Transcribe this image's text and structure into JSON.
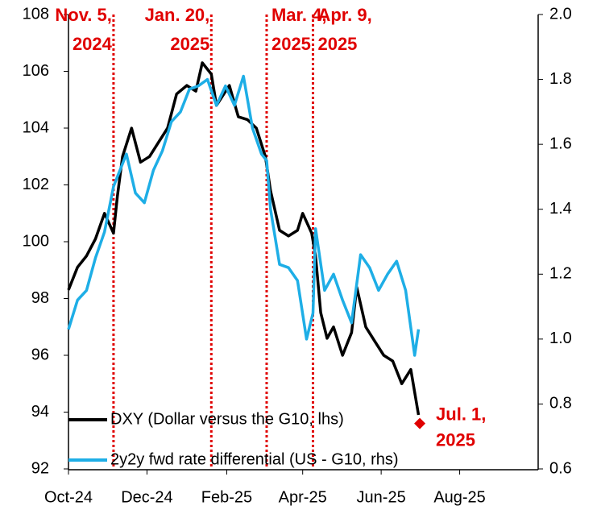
{
  "chart_data": {
    "type": "line",
    "xlim": [
      "2024-10-01",
      "2025-10-01"
    ],
    "xticks": [
      {
        "value": "2024-10-01",
        "label": "Oct-24"
      },
      {
        "value": "2024-12-01",
        "label": "Dec-24"
      },
      {
        "value": "2025-02-01",
        "label": "Feb-25"
      },
      {
        "value": "2025-04-01",
        "label": "Apr-25"
      },
      {
        "value": "2025-06-01",
        "label": "Jun-25"
      },
      {
        "value": "2025-08-01",
        "label": "Aug-25"
      }
    ],
    "ylim": [
      92,
      108
    ],
    "yticks": [
      92,
      94,
      96,
      98,
      100,
      102,
      104,
      106,
      108
    ],
    "y2lim": [
      0.6,
      2.0
    ],
    "y2ticks": [
      {
        "value": 0.6,
        "label": "0.6"
      },
      {
        "value": 0.8,
        "label": "0.8"
      },
      {
        "value": 1.0,
        "label": "1.0"
      },
      {
        "value": 1.2,
        "label": "1.2"
      },
      {
        "value": 1.4,
        "label": "1.4"
      },
      {
        "value": 1.6,
        "label": "1.6"
      },
      {
        "value": 1.8,
        "label": "1.8"
      },
      {
        "value": 2.0,
        "label": "2.0"
      }
    ],
    "legend": "lower left",
    "series": [
      {
        "name": "DXY (Dollar versus the G10, lhs)",
        "color": "#000000",
        "axis": "y",
        "x": [
          "2024-10-01",
          "2024-10-08",
          "2024-10-15",
          "2024-10-22",
          "2024-10-29",
          "2024-11-01",
          "2024-11-05",
          "2024-11-08",
          "2024-11-12",
          "2024-11-19",
          "2024-11-26",
          "2024-12-03",
          "2024-12-10",
          "2024-12-17",
          "2024-12-24",
          "2025-01-01",
          "2025-01-08",
          "2025-01-13",
          "2025-01-20",
          "2025-01-24",
          "2025-02-03",
          "2025-02-10",
          "2025-02-17",
          "2025-02-24",
          "2025-03-03",
          "2025-03-07",
          "2025-03-14",
          "2025-03-21",
          "2025-03-28",
          "2025-04-01",
          "2025-04-04",
          "2025-04-08",
          "2025-04-11",
          "2025-04-15",
          "2025-04-20",
          "2025-04-25",
          "2025-05-02",
          "2025-05-09",
          "2025-05-13",
          "2025-05-20",
          "2025-05-27",
          "2025-06-03",
          "2025-06-10",
          "2025-06-17",
          "2025-06-24",
          "2025-06-30"
        ],
        "values": [
          98.3,
          99.1,
          99.5,
          100.1,
          101.0,
          100.7,
          100.3,
          101.6,
          103.0,
          104.0,
          102.8,
          103.0,
          103.5,
          104.0,
          105.2,
          105.5,
          105.3,
          106.3,
          105.9,
          104.8,
          105.5,
          104.4,
          104.3,
          104.0,
          103.0,
          101.8,
          100.4,
          100.2,
          100.4,
          101.0,
          100.7,
          100.3,
          99.5,
          97.5,
          96.6,
          97.0,
          96.0,
          96.8,
          98.4,
          97.0,
          96.5,
          96.0,
          95.8,
          95.0,
          95.5,
          93.9
        ]
      },
      {
        "name": "2y2y fwd rate differential (US - G10, rhs)",
        "color": "#1eaee6",
        "axis": "y2",
        "x": [
          "2024-10-01",
          "2024-10-08",
          "2024-10-15",
          "2024-10-22",
          "2024-10-29",
          "2024-11-05",
          "2024-11-08",
          "2024-11-15",
          "2024-11-22",
          "2024-11-29",
          "2024-12-06",
          "2024-12-13",
          "2024-12-20",
          "2024-12-27",
          "2025-01-03",
          "2025-01-10",
          "2025-01-17",
          "2025-01-24",
          "2025-01-31",
          "2025-02-07",
          "2025-02-14",
          "2025-02-21",
          "2025-02-28",
          "2025-03-04",
          "2025-03-07",
          "2025-03-14",
          "2025-03-21",
          "2025-03-28",
          "2025-04-04",
          "2025-04-09",
          "2025-04-11",
          "2025-04-18",
          "2025-04-25",
          "2025-05-02",
          "2025-05-09",
          "2025-05-16",
          "2025-05-23",
          "2025-05-30",
          "2025-06-06",
          "2025-06-13",
          "2025-06-20",
          "2025-06-27",
          "2025-06-30"
        ],
        "values": [
          1.03,
          1.12,
          1.15,
          1.25,
          1.33,
          1.47,
          1.5,
          1.57,
          1.45,
          1.42,
          1.52,
          1.58,
          1.67,
          1.7,
          1.77,
          1.78,
          1.8,
          1.72,
          1.78,
          1.72,
          1.81,
          1.65,
          1.57,
          1.55,
          1.4,
          1.23,
          1.22,
          1.18,
          1.0,
          1.08,
          1.34,
          1.15,
          1.2,
          1.12,
          1.05,
          1.26,
          1.22,
          1.15,
          1.2,
          1.24,
          1.15,
          0.95,
          1.03
        ]
      }
    ],
    "events": [
      {
        "date": "2024-11-05",
        "label": [
          "Nov. 5,",
          "2024"
        ]
      },
      {
        "date": "2025-01-20",
        "label": [
          "Jan. 20,",
          "2025"
        ]
      },
      {
        "date": "2025-03-04",
        "label": [
          "Mar. 4,",
          "2025"
        ]
      },
      {
        "date": "2025-04-09",
        "label": [
          "Apr. 9,",
          "2025"
        ]
      }
    ],
    "marker": {
      "date": "2025-07-01",
      "value": 93.6,
      "color": "#e00000",
      "label": [
        "Jul. 1,",
        "2025"
      ]
    },
    "event_color": "#e00000"
  }
}
